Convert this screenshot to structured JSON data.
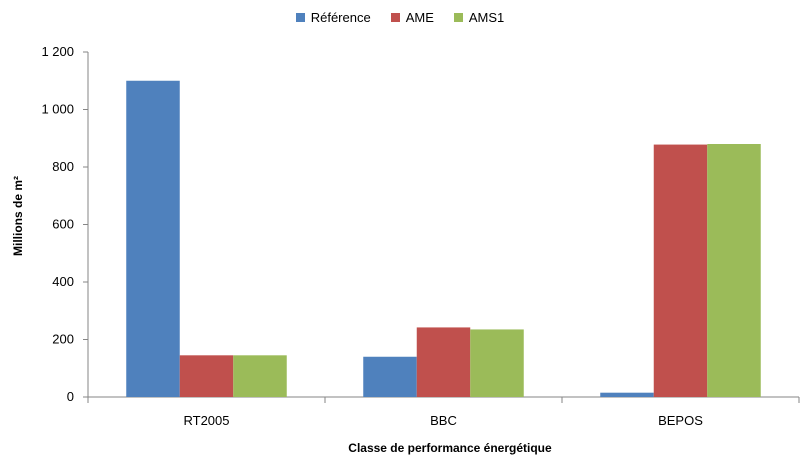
{
  "chart_data": {
    "type": "bar",
    "title": "",
    "xlabel": "Classe de performance énergétique",
    "ylabel": "Millions de m²",
    "categories": [
      "RT2005",
      "BBC",
      "BEPOS"
    ],
    "series": [
      {
        "name": "Référence",
        "color": "#4F81BD",
        "values": [
          1100,
          140,
          15
        ]
      },
      {
        "name": "AME",
        "color": "#C0504D",
        "values": [
          145,
          242,
          878
        ]
      },
      {
        "name": "AMS1",
        "color": "#9BBB59",
        "values": [
          145,
          235,
          880
        ]
      }
    ],
    "ylim": [
      0,
      1200
    ],
    "yticks": [
      0,
      200,
      400,
      600,
      800,
      1000,
      1200
    ],
    "ytick_labels": [
      "0",
      "200",
      "400",
      "600",
      "800",
      "1 000",
      "1 200"
    ],
    "grid": false,
    "legend_position": "top-center"
  }
}
